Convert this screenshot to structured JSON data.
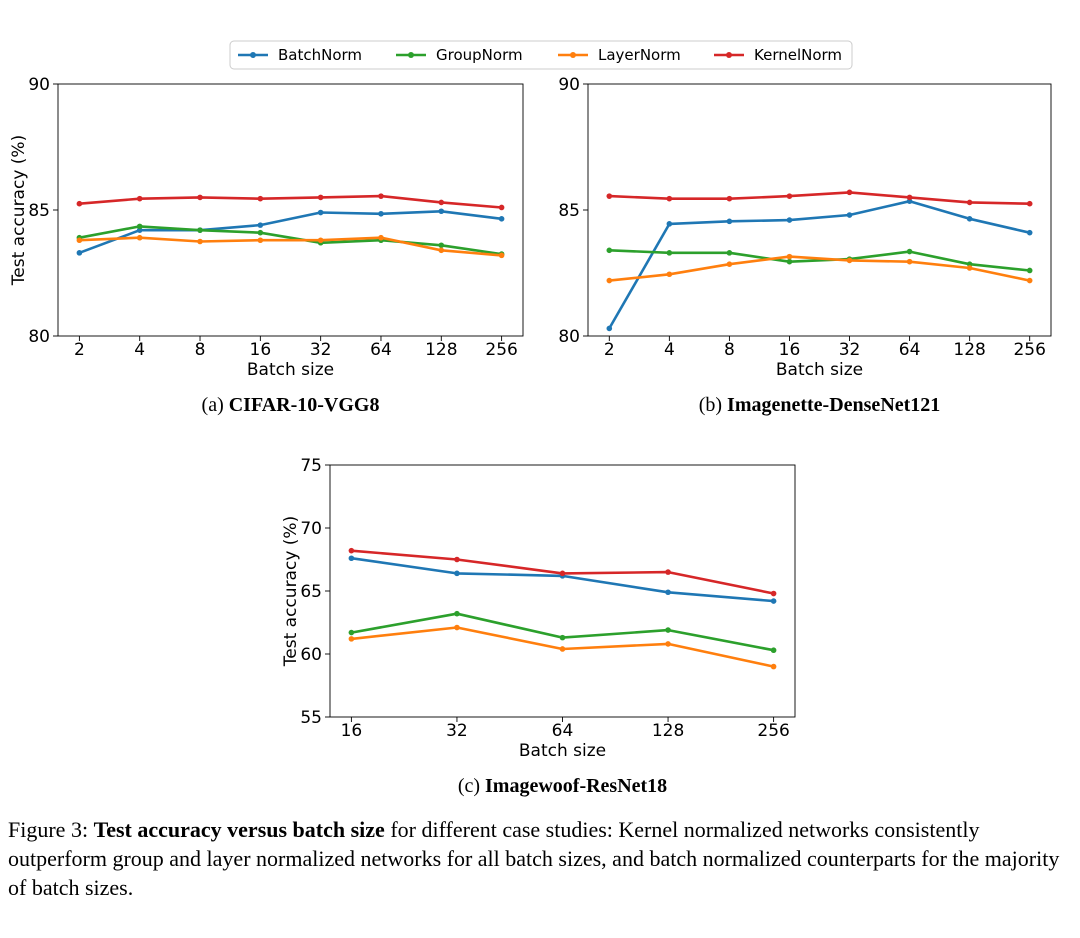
{
  "legend": {
    "entries": [
      {
        "label": "BatchNorm",
        "color": "#1f77b4"
      },
      {
        "label": "GroupNorm",
        "color": "#2ca02c"
      },
      {
        "label": "LayerNorm",
        "color": "#ff7f0e"
      },
      {
        "label": "KernelNorm",
        "color": "#d62728"
      }
    ]
  },
  "chart_data": [
    {
      "type": "line",
      "subcaption_prefix": "(a)",
      "subcaption_title": "CIFAR-10-VGG8",
      "xlabel": "Batch size",
      "ylabel": "Test accuracy (%)",
      "categories": [
        "2",
        "4",
        "8",
        "16",
        "32",
        "64",
        "128",
        "256"
      ],
      "ylim": [
        80,
        90
      ],
      "yticks": [
        80,
        85,
        90
      ],
      "grid": false,
      "series": [
        {
          "name": "BatchNorm",
          "color": "#1f77b4",
          "values": [
            83.3,
            84.2,
            84.2,
            84.4,
            84.9,
            84.85,
            84.95,
            84.65
          ]
        },
        {
          "name": "GroupNorm",
          "color": "#2ca02c",
          "values": [
            83.9,
            84.35,
            84.2,
            84.1,
            83.7,
            83.8,
            83.6,
            83.25
          ]
        },
        {
          "name": "LayerNorm",
          "color": "#ff7f0e",
          "values": [
            83.8,
            83.9,
            83.75,
            83.8,
            83.8,
            83.9,
            83.4,
            83.2
          ]
        },
        {
          "name": "KernelNorm",
          "color": "#d62728",
          "values": [
            85.25,
            85.45,
            85.5,
            85.45,
            85.5,
            85.55,
            85.3,
            85.1
          ]
        }
      ]
    },
    {
      "type": "line",
      "subcaption_prefix": "(b)",
      "subcaption_title": "Imagenette-DenseNet121",
      "xlabel": "Batch size",
      "ylabel": "",
      "categories": [
        "2",
        "4",
        "8",
        "16",
        "32",
        "64",
        "128",
        "256"
      ],
      "ylim": [
        80,
        90
      ],
      "yticks": [
        80,
        85,
        90
      ],
      "grid": false,
      "series": [
        {
          "name": "BatchNorm",
          "color": "#1f77b4",
          "values": [
            80.3,
            84.45,
            84.55,
            84.6,
            84.8,
            85.35,
            84.65,
            84.1
          ]
        },
        {
          "name": "GroupNorm",
          "color": "#2ca02c",
          "values": [
            83.4,
            83.3,
            83.3,
            82.95,
            83.05,
            83.35,
            82.85,
            82.6
          ]
        },
        {
          "name": "LayerNorm",
          "color": "#ff7f0e",
          "values": [
            82.2,
            82.45,
            82.85,
            83.15,
            83.0,
            82.95,
            82.7,
            82.2
          ]
        },
        {
          "name": "KernelNorm",
          "color": "#d62728",
          "values": [
            85.55,
            85.45,
            85.45,
            85.55,
            85.7,
            85.5,
            85.3,
            85.25
          ]
        }
      ]
    },
    {
      "type": "line",
      "subcaption_prefix": "(c)",
      "subcaption_title": "Imagewoof-ResNet18",
      "xlabel": "Batch size",
      "ylabel": "Test accuracy (%)",
      "categories": [
        "16",
        "32",
        "64",
        "128",
        "256"
      ],
      "ylim": [
        55,
        75
      ],
      "yticks": [
        55,
        60,
        65,
        70,
        75
      ],
      "grid": false,
      "series": [
        {
          "name": "BatchNorm",
          "color": "#1f77b4",
          "values": [
            67.6,
            66.4,
            66.2,
            64.9,
            64.2
          ]
        },
        {
          "name": "GroupNorm",
          "color": "#2ca02c",
          "values": [
            61.7,
            63.2,
            61.3,
            61.9,
            60.3
          ]
        },
        {
          "name": "LayerNorm",
          "color": "#ff7f0e",
          "values": [
            61.2,
            62.1,
            60.4,
            60.8,
            59.0
          ]
        },
        {
          "name": "KernelNorm",
          "color": "#d62728",
          "values": [
            68.2,
            67.5,
            66.4,
            66.5,
            64.8
          ]
        }
      ]
    }
  ],
  "caption": {
    "prefix": "Figure 3: ",
    "bold": "Test accuracy versus batch size",
    "rest": " for different case studies: Kernel normalized networks consistently outperform group and layer normalized networks for all batch sizes, and batch normalized counterparts for the majority of batch sizes."
  }
}
